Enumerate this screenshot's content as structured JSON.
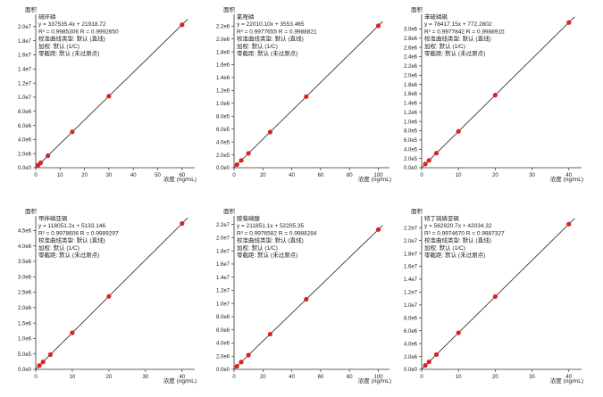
{
  "common": {
    "ylabel": "面积",
    "xlabel": "浓度 (ng/mL)",
    "line_color": "#222222",
    "point_color": "#e02020",
    "type_text": "校准曲线类型: 默认 (直线)",
    "weight_text": "加权: 默认 (1/C)",
    "origin_text": "零截距: 默认 (未过原点)"
  },
  "chart_data": [
    {
      "type": "scatter",
      "name": "硫环磷",
      "equation": "y = 337535.4x + 21918.72",
      "r_text": "R² = 0.9985306    R = 0.9992650",
      "x": [
        1,
        2,
        5,
        15,
        30,
        60
      ],
      "y": [
        359454,
        697000,
        1709596,
        5084949,
        10147980,
        20274042
      ],
      "slope": 337535.4,
      "intercept": 21918.72,
      "xlim": [
        0,
        63
      ],
      "ylim": [
        0,
        21000000
      ],
      "xticks": [
        0,
        10,
        20,
        30,
        40,
        50,
        60
      ],
      "yticks": [
        0,
        2000000,
        4000000,
        6000000,
        8000000,
        10000000,
        12000000,
        14000000,
        16000000,
        18000000,
        20000000
      ],
      "yticklabels": [
        "0.0e0",
        "2.0e6",
        "4.0e6",
        "6.0e6",
        "8.0e6",
        "1.0e7",
        "1.2e7",
        "1.4e7",
        "1.6e7",
        "1.8e7",
        "2.0e7"
      ]
    },
    {
      "type": "scatter",
      "name": "氯唑磷",
      "equation": "y = 22010.10x + 3553.465",
      "r_text": "R² = 0.9977655    R = 0.9988821",
      "x": [
        2,
        5,
        10,
        25,
        50,
        100
      ],
      "y": [
        47573,
        113604,
        223654,
        553806,
        1104058,
        2204563
      ],
      "slope": 22010.1,
      "intercept": 3553.465,
      "xlim": [
        0,
        104
      ],
      "ylim": [
        0,
        2300000
      ],
      "xticks": [
        0,
        20,
        40,
        60,
        80,
        100
      ],
      "yticks": [
        0,
        200000,
        400000,
        600000,
        800000,
        1000000,
        1200000,
        1400000,
        1600000,
        1800000,
        2000000,
        2200000
      ],
      "yticklabels": [
        "0.0e0",
        "2.0e5",
        "4.0e5",
        "6.0e5",
        "8.0e5",
        "1.0e6",
        "1.2e6",
        "1.4e6",
        "1.6e6",
        "1.8e6",
        "2.0e6",
        "2.2e6"
      ]
    },
    {
      "type": "scatter",
      "name": "苯硫磷砜",
      "equation": "y = 78417.15x + 772.2802",
      "r_text": "R² = 0.9977842    R = 0.9988915",
      "x": [
        1,
        2,
        4,
        10,
        20,
        40
      ],
      "y": [
        79189,
        157607,
        314441,
        784944,
        1569115,
        3137458
      ],
      "slope": 78417.15,
      "intercept": 772.2802,
      "xlim": [
        0,
        42
      ],
      "ylim": [
        0,
        3200000
      ],
      "xticks": [
        0,
        10,
        20,
        30,
        40
      ],
      "yticks": [
        0,
        200000,
        400000,
        600000,
        800000,
        1000000,
        1200000,
        1400000,
        1600000,
        1800000,
        2000000,
        2200000,
        2400000,
        2600000,
        2800000,
        3000000
      ],
      "yticklabels": [
        "0.0e0",
        "2.0e5",
        "4.0e5",
        "6.0e5",
        "8.0e5",
        "1.0e6",
        "1.2e6",
        "1.4e6",
        "1.6e6",
        "1.8e6",
        "2.0e6",
        "2.2e6",
        "2.4e6",
        "2.6e6",
        "2.8e6",
        "3.0e6"
      ]
    },
    {
      "type": "scatter",
      "name": "甲拌磷亚砜",
      "equation": "y = 118051.2x + 5133.146",
      "r_text": "R² = 0.9978606    R = 0.9989297",
      "x": [
        1,
        2,
        4,
        10,
        20,
        40
      ],
      "y": [
        123184,
        241235,
        477338,
        1185645,
        2366157,
        4727181
      ],
      "slope": 118051.2,
      "intercept": 5133.146,
      "xlim": [
        0,
        42
      ],
      "ylim": [
        0,
        4800000
      ],
      "xticks": [
        0,
        10,
        20,
        30,
        40
      ],
      "yticks": [
        0,
        500000,
        1000000,
        1500000,
        2000000,
        2500000,
        3000000,
        3500000,
        4000000,
        4500000
      ],
      "yticklabels": [
        "0.0e0",
        "5.0e5",
        "1.0e6",
        "1.5e6",
        "2.0e6",
        "2.5e6",
        "3.0e6",
        "3.5e6",
        "4.0e6",
        "4.5e6"
      ]
    },
    {
      "type": "scatter",
      "name": "胺菊磷酸",
      "equation": "y = 211851.1x + 52205.35",
      "r_text": "R² = 0.9976582    R = 0.9988284",
      "x": [
        2,
        5,
        10,
        25,
        50,
        100
      ],
      "y": [
        475907,
        1111461,
        2170716,
        5348483,
        10644760,
        21237315
      ],
      "slope": 211851.1,
      "intercept": 52205.35,
      "xlim": [
        0,
        104
      ],
      "ylim": [
        0,
        22500000
      ],
      "xticks": [
        0,
        20,
        40,
        60,
        80,
        100
      ],
      "yticks": [
        0,
        2000000,
        4000000,
        6000000,
        8000000,
        10000000,
        12000000,
        14000000,
        16000000,
        18000000,
        20000000,
        22000000
      ],
      "yticklabels": [
        "0.0e0",
        "2.0e6",
        "4.0e6",
        "6.0e6",
        "8.0e6",
        "1.0e7",
        "1.2e7",
        "1.4e7",
        "1.6e7",
        "1.8e7",
        "2.0e7",
        "2.2e7"
      ]
    },
    {
      "type": "scatter",
      "name": "特丁硫磷亚砜",
      "equation": "y = 562920.7x + 42034.32",
      "r_text": "R² = 0.9974670    R = 0.9987327",
      "x": [
        1,
        2,
        4,
        10,
        20,
        40
      ],
      "y": [
        604955,
        1167876,
        2293717,
        5671241,
        11300448,
        22558862
      ],
      "slope": 562920.7,
      "intercept": 42034.32,
      "xlim": [
        0,
        42
      ],
      "ylim": [
        0,
        23000000
      ],
      "xticks": [
        0,
        10,
        20,
        30,
        40
      ],
      "yticks": [
        0,
        2000000,
        4000000,
        6000000,
        8000000,
        10000000,
        12000000,
        14000000,
        16000000,
        18000000,
        20000000,
        22000000
      ],
      "yticklabels": [
        "0.0e0",
        "2.0e6",
        "4.0e6",
        "6.0e6",
        "8.0e6",
        "1.0e7",
        "1.2e7",
        "1.4e7",
        "1.6e7",
        "1.8e7",
        "2.0e7",
        "2.2e7"
      ]
    }
  ]
}
